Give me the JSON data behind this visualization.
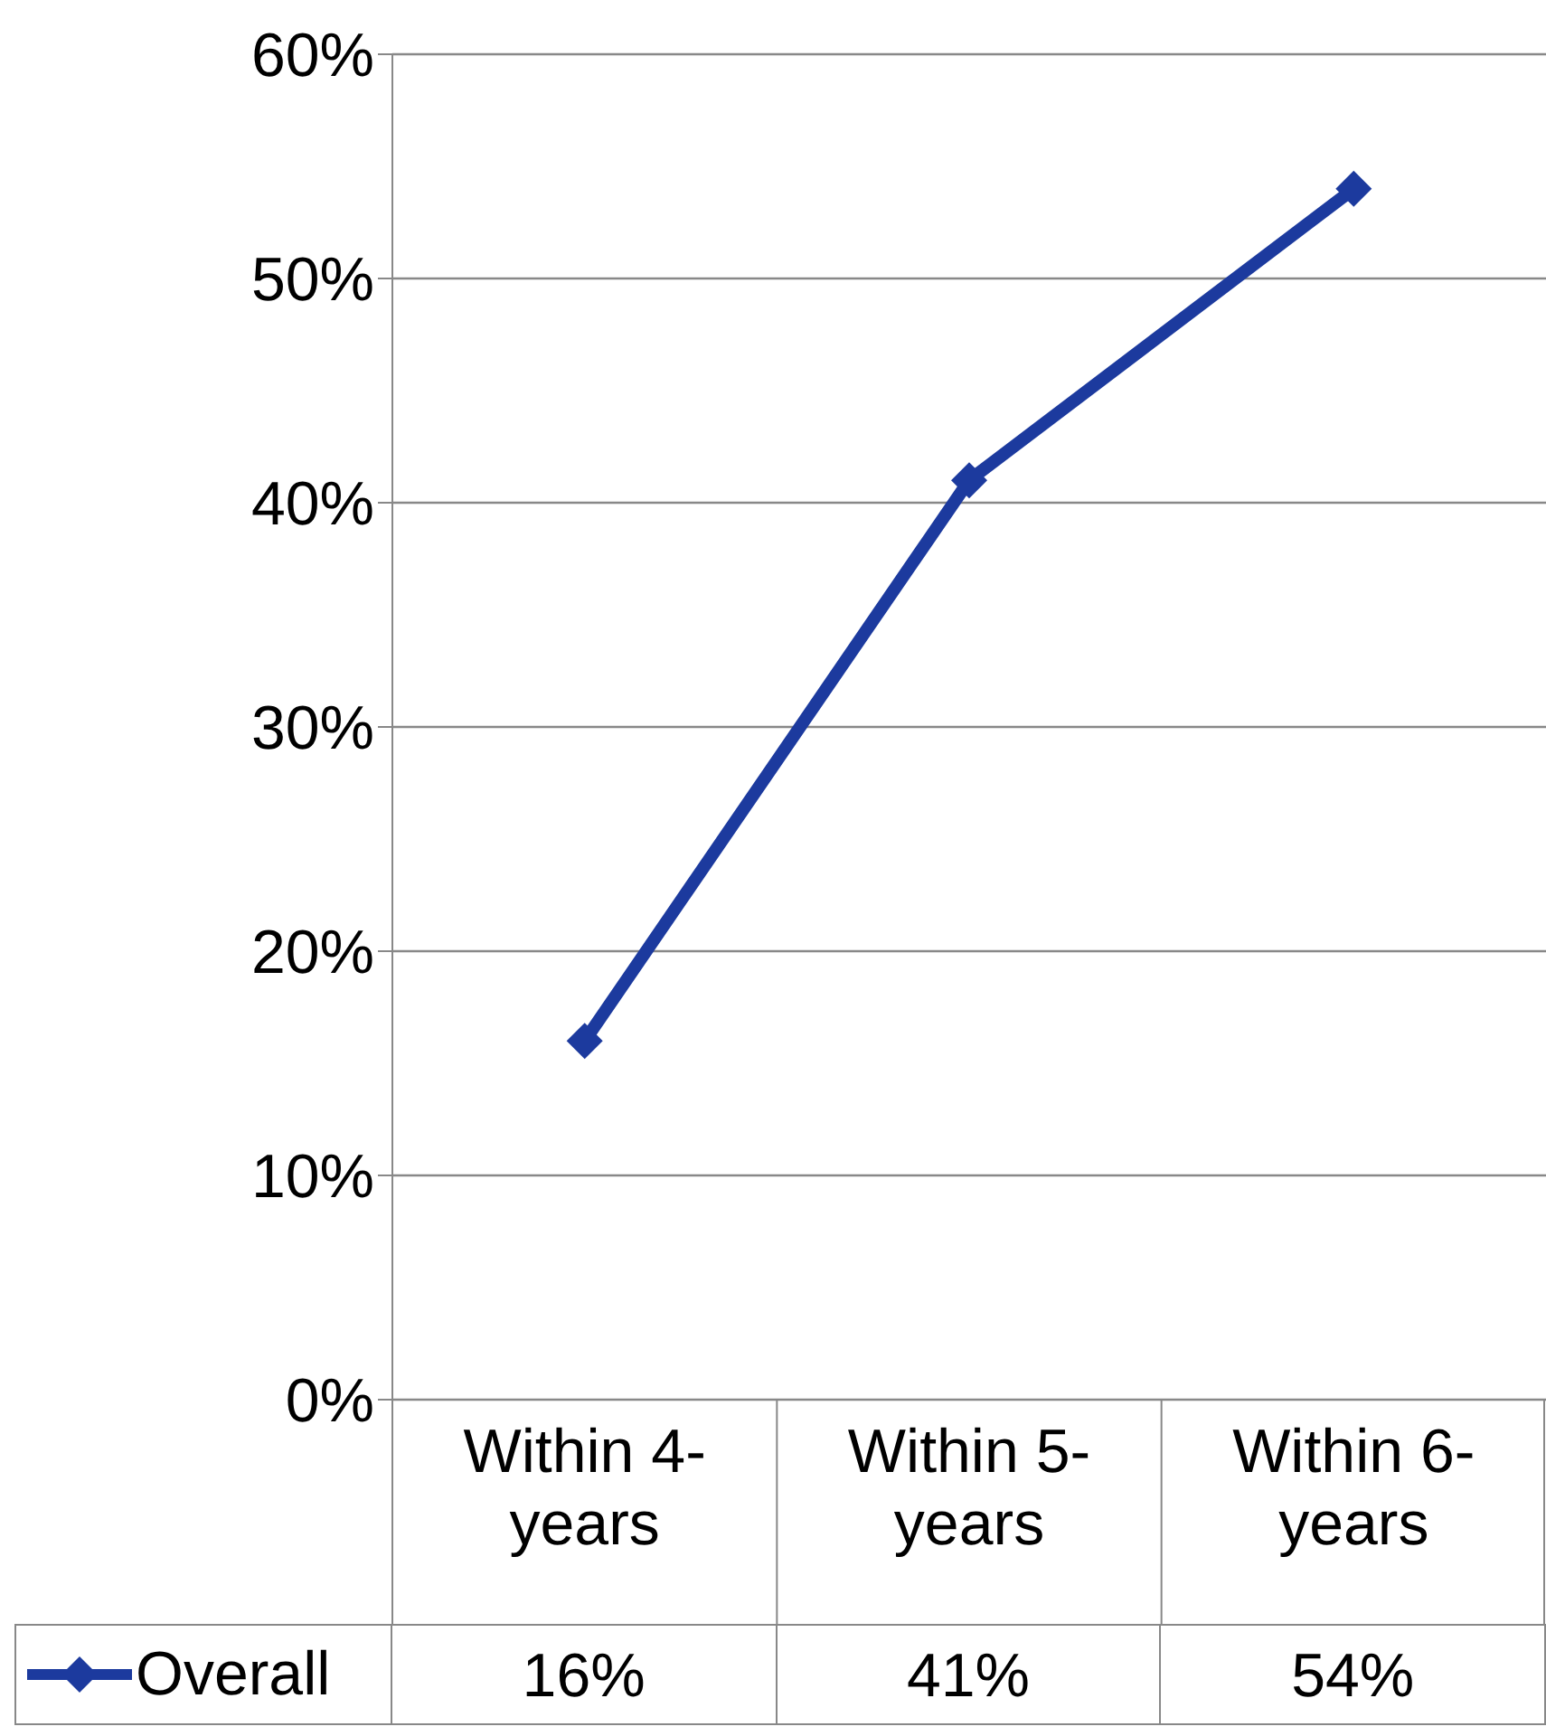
{
  "chart_data": {
    "type": "line",
    "categories": [
      "Within 4-years",
      "Within 5-years",
      "Within 6-years"
    ],
    "series": [
      {
        "name": "Overall",
        "color": "#1c3a9e",
        "values": [
          16,
          41,
          54
        ],
        "value_labels": [
          "16%",
          "41%",
          "54%"
        ]
      }
    ],
    "ylim": [
      0,
      60
    ],
    "yticks": [
      {
        "value": 0,
        "label": "0%"
      },
      {
        "value": 10,
        "label": "10%"
      },
      {
        "value": 20,
        "label": "20%"
      },
      {
        "value": 30,
        "label": "30%"
      },
      {
        "value": 40,
        "label": "40%"
      },
      {
        "value": 50,
        "label": "50%"
      },
      {
        "value": 60,
        "label": "60%"
      }
    ],
    "grid": "y",
    "legend": "bottom left",
    "marker": "diamond",
    "line_style": "solid"
  }
}
